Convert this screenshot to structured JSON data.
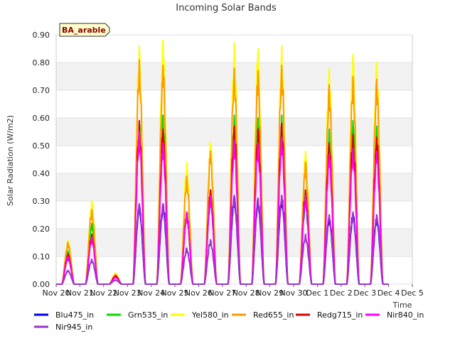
{
  "chart_data": {
    "type": "line",
    "title": "Incoming Solar Bands",
    "xlabel": "Time",
    "ylabel": "Solar Radiation (W/m2)",
    "badge": "BA_arable",
    "ylim": [
      0,
      0.9
    ],
    "xlim": [
      0,
      15
    ],
    "y_ticks": [
      0.0,
      0.1,
      0.2,
      0.3,
      0.4,
      0.5,
      0.6,
      0.7,
      0.8,
      0.9
    ],
    "y_tick_labels": [
      "0.00",
      "0.10",
      "0.20",
      "0.30",
      "0.40",
      "0.50",
      "0.60",
      "0.70",
      "0.80",
      "0.90"
    ],
    "x_ticks": [
      0,
      1,
      2,
      3,
      4,
      5,
      6,
      7,
      8,
      9,
      10,
      11,
      12,
      13,
      14,
      15
    ],
    "x_tick_labels": [
      "Nov 20",
      "Nov 21",
      "Nov 22",
      "Nov 23",
      "Nov 24",
      "Nov 25",
      "Nov 26",
      "Nov 27",
      "Nov 28",
      "Nov 29",
      "Nov 30",
      "Dec 1",
      "Dec 2",
      "Dec 3",
      "Dec 4",
      "Dec 5"
    ],
    "day_peaks_x": [
      0.5,
      1.5,
      2.5,
      3.5,
      4.5,
      5.5,
      6.5,
      7.5,
      8.5,
      9.5,
      10.5,
      11.5,
      12.5,
      13.5
    ],
    "series": [
      {
        "name": "Blu475_in",
        "color": "#0000ee",
        "peaks": [
          0.1,
          0.18,
          0.03,
          0.29,
          0.29,
          0.26,
          0.32,
          0.32,
          0.31,
          0.32,
          0.31,
          0.25,
          0.26,
          0.25
        ]
      },
      {
        "name": "Grn535_in",
        "color": "#00dd00",
        "peaks": [
          0.12,
          0.22,
          0.03,
          0.58,
          0.61,
          0.26,
          0.34,
          0.61,
          0.6,
          0.61,
          0.34,
          0.56,
          0.59,
          0.57
        ]
      },
      {
        "name": "Yel580_in",
        "color": "#ffff00",
        "peaks": [
          0.16,
          0.3,
          0.04,
          0.86,
          0.88,
          0.44,
          0.51,
          0.87,
          0.85,
          0.86,
          0.48,
          0.78,
          0.83,
          0.8
        ]
      },
      {
        "name": "Red655_in",
        "color": "#ff9900",
        "peaks": [
          0.15,
          0.27,
          0.035,
          0.81,
          0.79,
          0.39,
          0.48,
          0.78,
          0.77,
          0.79,
          0.44,
          0.72,
          0.75,
          0.74
        ]
      },
      {
        "name": "Redg715_in",
        "color": "#dd0000",
        "peaks": [
          0.11,
          0.18,
          0.03,
          0.59,
          0.56,
          0.26,
          0.34,
          0.57,
          0.56,
          0.58,
          0.34,
          0.51,
          0.54,
          0.53
        ]
      },
      {
        "name": "Nir840_in",
        "color": "#ff00ff",
        "peaks": [
          0.1,
          0.17,
          0.025,
          0.55,
          0.51,
          0.26,
          0.32,
          0.52,
          0.51,
          0.53,
          0.32,
          0.47,
          0.49,
          0.48
        ]
      },
      {
        "name": "Nir945_in",
        "color": "#9933cc",
        "peaks": [
          0.05,
          0.09,
          0.015,
          0.29,
          0.29,
          0.13,
          0.16,
          0.32,
          0.31,
          0.32,
          0.18,
          0.25,
          0.26,
          0.25
        ]
      }
    ],
    "grid": true,
    "legend_position": "bottom"
  }
}
